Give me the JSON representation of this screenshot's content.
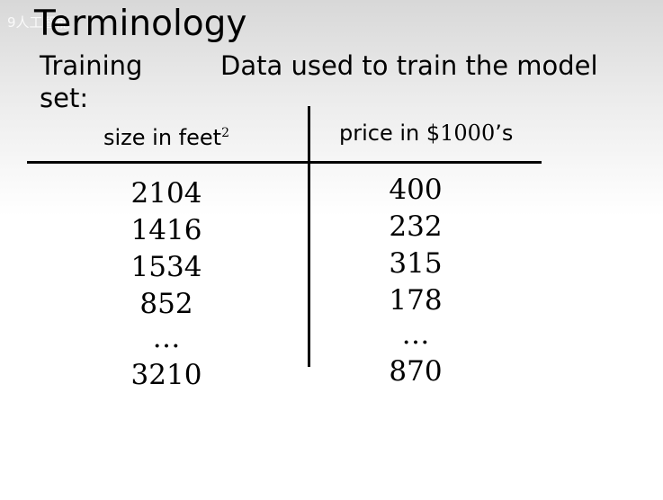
{
  "watermark": "9人工智能",
  "title": "Terminology",
  "training_set": {
    "term": "Training set:",
    "definition": "Data used to train the model"
  },
  "table": {
    "columns": [
      {
        "label": "size in feet",
        "superscript": "2"
      },
      {
        "label_prefix": "price in $",
        "label_number": "1000",
        "label_suffix": "’s"
      }
    ],
    "size_values": [
      "2104",
      "1416",
      "1534",
      "852",
      "…",
      "3210"
    ],
    "price_values": [
      "400",
      "232",
      "315",
      "178",
      "…",
      "870"
    ]
  }
}
